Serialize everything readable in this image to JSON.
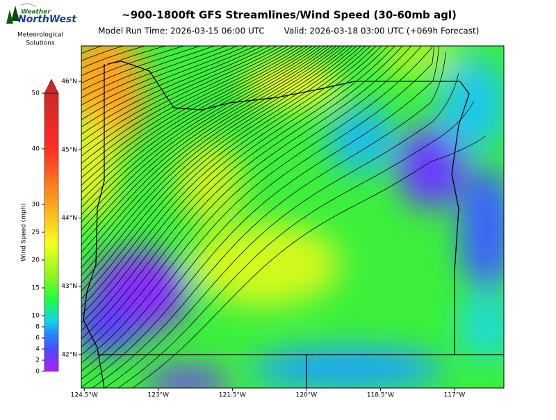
{
  "header": {
    "logo_line1": "Weather",
    "logo_line2": "NorthWest",
    "org_line1": "Meteorological",
    "org_line2": "Solutions",
    "title": "~900-1800ft GFS Streamlines/Wind Speed (30-60mb agl)",
    "run_time": "Model Run Time: 2026-03-15 06:00 UTC",
    "valid": "Valid: 2026-03-18 03:00 UTC  (+069h Forecast)"
  },
  "chart_data": {
    "type": "map",
    "colorbar": {
      "label": "Wind Speed (mph)",
      "lim": [
        0,
        50
      ],
      "ticks": [
        0,
        2,
        4,
        6,
        8,
        10,
        15,
        20,
        25,
        30,
        40,
        50
      ]
    },
    "xlim": [
      -124.56,
      -116.0
    ],
    "xticks": [
      {
        "value": -124.5,
        "label": "124.5°W"
      },
      {
        "value": -123,
        "label": "123°W"
      },
      {
        "value": -121.5,
        "label": "121.5°W"
      },
      {
        "value": -120,
        "label": "120°W"
      },
      {
        "value": -118.5,
        "label": "118.5°W"
      },
      {
        "value": -117,
        "label": "117°W"
      }
    ],
    "ylim": [
      41.51,
      46.52
    ],
    "yticks": [
      {
        "value": 42,
        "label": "42°N"
      },
      {
        "value": 43,
        "label": "43°N"
      },
      {
        "value": 44,
        "label": "44°N"
      },
      {
        "value": 45,
        "label": "45°N"
      },
      {
        "value": 46,
        "label": "46°N"
      }
    ]
  }
}
